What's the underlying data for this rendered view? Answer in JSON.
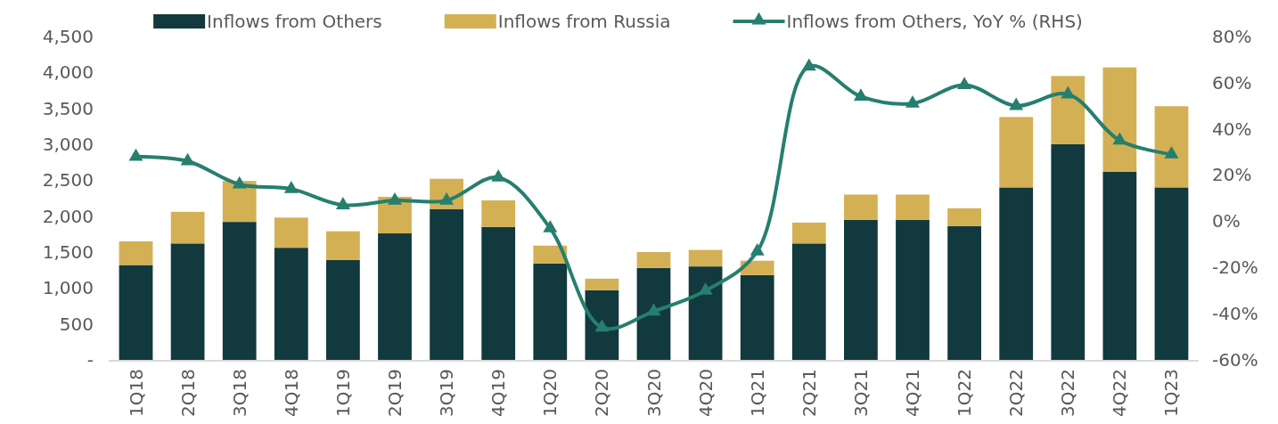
{
  "chart_data": {
    "type": "bar",
    "stacked": true,
    "legend": "top",
    "grid": false,
    "categories": [
      "1Q18",
      "2Q18",
      "3Q18",
      "4Q18",
      "1Q19",
      "2Q19",
      "3Q19",
      "4Q19",
      "1Q20",
      "2Q20",
      "3Q20",
      "4Q20",
      "1Q21",
      "2Q21",
      "3Q21",
      "4Q21",
      "1Q22",
      "2Q22",
      "3Q22",
      "4Q22",
      "1Q23"
    ],
    "ylim": [
      0,
      4500
    ],
    "yticks": [
      {
        "value": 0,
        "label": "-"
      },
      {
        "value": 500,
        "label": "500"
      },
      {
        "value": 1000,
        "label": "1,000"
      },
      {
        "value": 1500,
        "label": "1,500"
      },
      {
        "value": 2000,
        "label": "2,000"
      },
      {
        "value": 2500,
        "label": "2,500"
      },
      {
        "value": 3000,
        "label": "3,000"
      },
      {
        "value": 3500,
        "label": "3,500"
      },
      {
        "value": 4000,
        "label": "4,000"
      },
      {
        "value": 4500,
        "label": "4,500"
      }
    ],
    "y2lim": [
      -60,
      80
    ],
    "y2ticks": [
      {
        "value": -60,
        "label": "-60%"
      },
      {
        "value": -40,
        "label": "-40%"
      },
      {
        "value": -20,
        "label": "-20%"
      },
      {
        "value": 0,
        "label": "0%"
      },
      {
        "value": 20,
        "label": "20%"
      },
      {
        "value": 40,
        "label": "40%"
      },
      {
        "value": 60,
        "label": "60%"
      },
      {
        "value": 80,
        "label": "80%"
      }
    ],
    "series": [
      {
        "name": "Inflows from Others",
        "color": "#12393d",
        "values": [
          1320,
          1620,
          1920,
          1560,
          1390,
          1760,
          2100,
          1850,
          1340,
          970,
          1280,
          1300,
          1180,
          1620,
          1950,
          1950,
          1860,
          2400,
          3000,
          2620,
          2400
        ]
      },
      {
        "name": "Inflows from Russia",
        "color": "#d4b054",
        "values": [
          330,
          440,
          570,
          420,
          400,
          510,
          420,
          370,
          250,
          160,
          220,
          230,
          200,
          290,
          350,
          350,
          250,
          980,
          950,
          1450,
          1130
        ]
      },
      {
        "name": "Inflows from Others, YoY % (RHS)",
        "type": "line",
        "axis": "y2",
        "marker": "triangle",
        "line_style": "solid",
        "color": "#267f6e",
        "values": [
          28,
          26,
          16,
          14,
          7,
          9,
          9,
          19,
          -3,
          -46,
          -39,
          -30,
          -13,
          67,
          54,
          51,
          59,
          50,
          55,
          35,
          29
        ]
      }
    ]
  }
}
